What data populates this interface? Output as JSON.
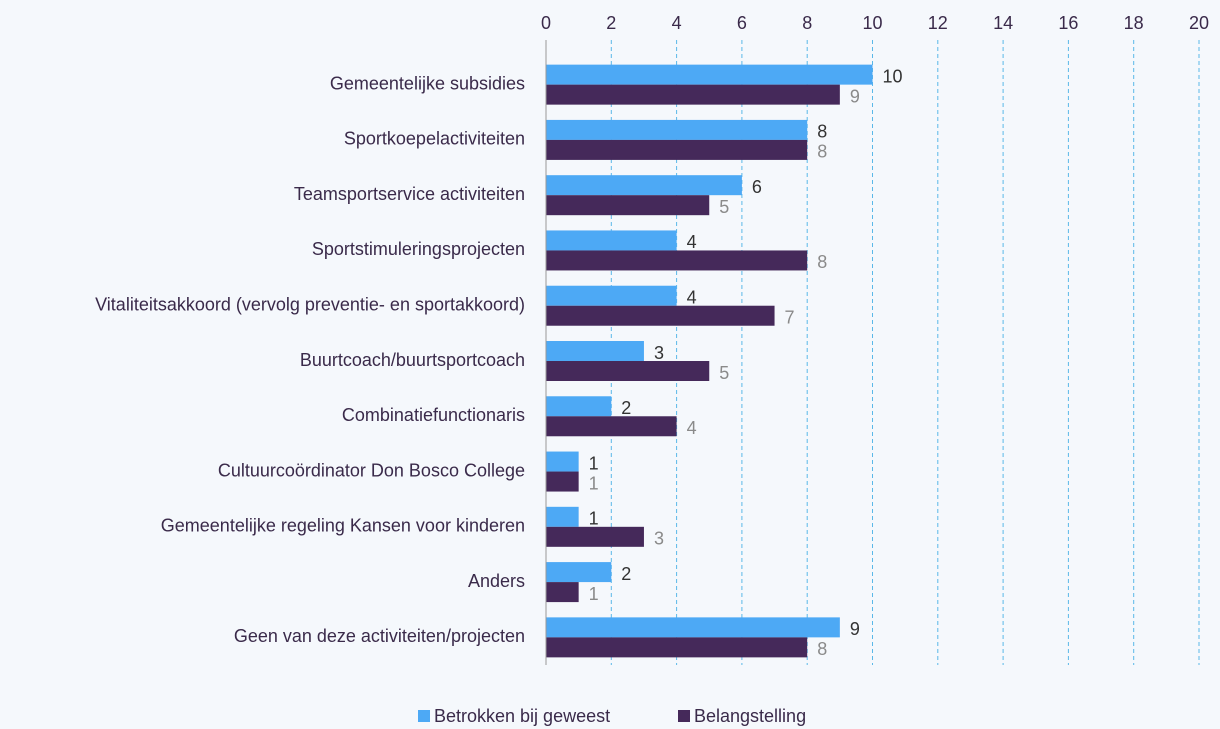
{
  "chart_data": {
    "type": "bar",
    "orientation": "horizontal",
    "categories": [
      "Gemeentelijke subsidies",
      "Sportkoepelactiviteiten",
      "Teamsportservice activiteiten",
      "Sportstimuleringsprojecten",
      "Vitaliteitsakkoord (vervolg preventie- en sportakkoord)",
      "Buurtcoach/buurtsportcoach",
      "Combinatiefunctionaris",
      "Cultuurcoördinator Don Bosco College",
      "Gemeentelijke regeling Kansen voor kinderen",
      "Anders",
      "Geen van deze activiteiten/projecten"
    ],
    "series": [
      {
        "name": "Betrokken bij geweest",
        "color": "#4da9f5",
        "values": [
          10,
          8,
          6,
          4,
          4,
          3,
          2,
          1,
          1,
          2,
          9
        ]
      },
      {
        "name": "Belangstelling",
        "color": "#45295a",
        "values": [
          9,
          8,
          5,
          8,
          7,
          5,
          4,
          1,
          3,
          1,
          8
        ]
      }
    ],
    "xlim": [
      0,
      20
    ],
    "xticks": [
      0,
      2,
      4,
      6,
      8,
      10,
      12,
      14,
      16,
      18,
      20
    ],
    "grid": true,
    "legend": "bottom"
  }
}
